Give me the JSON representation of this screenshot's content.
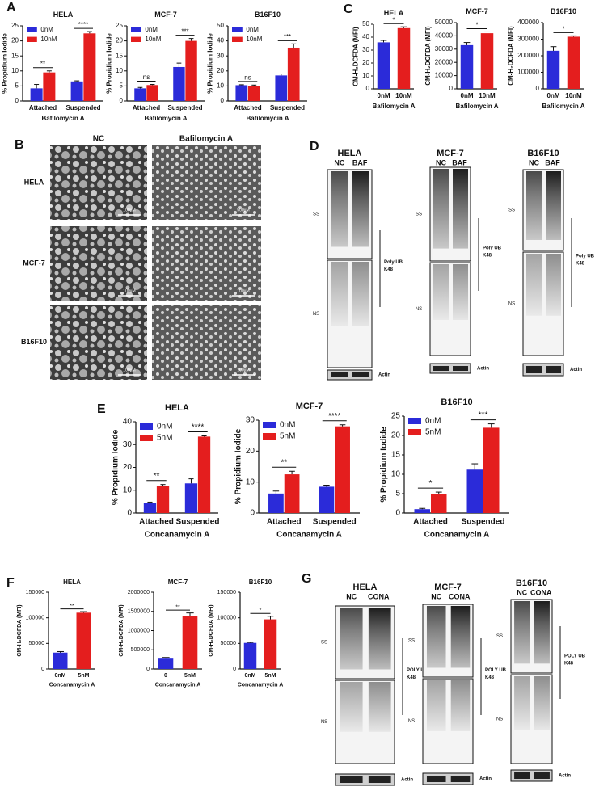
{
  "panel_labels": [
    "A",
    "B",
    "C",
    "D",
    "E",
    "F",
    "G"
  ],
  "chart_data": [
    {
      "type": "bar",
      "title": "HELA",
      "categories": [
        "Attached",
        "Suspended"
      ],
      "series": [
        {
          "name": "0nM",
          "color": "#2b2bd9",
          "values": [
            4.2,
            6.5
          ],
          "errors": [
            1.3,
            0.2
          ]
        },
        {
          "name": "10nM",
          "color": "#e41e1e",
          "values": [
            9.5,
            22.5
          ],
          "errors": [
            0.5,
            0.6
          ]
        }
      ],
      "significance": [
        "**",
        "****"
      ],
      "ylabel": "% Propidium Iodide",
      "xlabel": "Bafilomycin A",
      "ylim": [
        0,
        25
      ],
      "yticks": [
        0,
        5,
        10,
        15,
        20,
        25
      ],
      "legend": "upper left"
    },
    {
      "type": "bar",
      "title": "MCF-7",
      "categories": [
        "Attached",
        "Suspended"
      ],
      "series": [
        {
          "name": "0nM",
          "color": "#2b2bd9",
          "values": [
            4.2,
            11.3
          ],
          "errors": [
            0.3,
            1.3
          ]
        },
        {
          "name": "10nM",
          "color": "#e41e1e",
          "values": [
            5.3,
            20
          ],
          "errors": [
            0.2,
            0.8
          ]
        }
      ],
      "significance": [
        "ns",
        "***"
      ],
      "ylabel": "% Propidium Iodide",
      "xlabel": "Bafilomycin A",
      "ylim": [
        0,
        25
      ],
      "yticks": [
        0,
        5,
        10,
        15,
        20,
        25
      ],
      "legend": "upper left"
    },
    {
      "type": "bar",
      "title": "B16F10",
      "categories": [
        "Attached",
        "Suspended"
      ],
      "series": [
        {
          "name": "0nM",
          "color": "#2b2bd9",
          "values": [
            10.5,
            17
          ],
          "errors": [
            0.3,
            1
          ]
        },
        {
          "name": "10nM",
          "color": "#e41e1e",
          "values": [
            10.2,
            35.5
          ],
          "errors": [
            0.4,
            2.5
          ]
        }
      ],
      "significance": [
        "ns",
        "***"
      ],
      "ylabel": "% Propidium Iodide",
      "xlabel": "Bafilomycin A",
      "ylim": [
        0,
        50
      ],
      "yticks": [
        0,
        10,
        20,
        30,
        40,
        50
      ],
      "legend": "upper left"
    },
    {
      "type": "bar",
      "title": "HELA",
      "categories": [
        "0nM",
        "10nM"
      ],
      "values": [
        36,
        47
      ],
      "errors": [
        1.5,
        1
      ],
      "colors": [
        "#2b2bd9",
        "#e41e1e"
      ],
      "significance": "*",
      "ylabel": "CM-H₂DCFDA (MFI)",
      "xlabel": "Bafilomycin A",
      "ylim": [
        0,
        50
      ],
      "yticks": [
        0,
        10,
        20,
        30,
        40,
        50
      ]
    },
    {
      "type": "bar",
      "title": "MCF-7",
      "categories": [
        "0nM",
        "10nM"
      ],
      "values": [
        33000,
        42000
      ],
      "errors": [
        2000,
        1000
      ],
      "colors": [
        "#2b2bd9",
        "#e41e1e"
      ],
      "significance": "*",
      "ylabel": "CM-H₂DCFDA (MFI)",
      "xlabel": "Bafilomycin A",
      "ylim": [
        0,
        50000
      ],
      "yticks": [
        0,
        10000,
        20000,
        30000,
        40000,
        50000
      ]
    },
    {
      "type": "bar",
      "title": "B16F10",
      "categories": [
        "0nM",
        "10nM"
      ],
      "values": [
        230000,
        315000
      ],
      "errors": [
        25000,
        5000
      ],
      "colors": [
        "#2b2bd9",
        "#e41e1e"
      ],
      "significance": "*",
      "ylabel": "CM-H₂DCFDA (MFI)",
      "xlabel": "Bafilomycin A",
      "ylim": [
        0,
        400000
      ],
      "yticks": [
        0,
        100000,
        200000,
        300000,
        400000
      ]
    },
    {
      "type": "bar",
      "title": "HELA",
      "categories": [
        "Attached",
        "Suspended"
      ],
      "series": [
        {
          "name": "0nM",
          "color": "#2b2bd9",
          "values": [
            4.5,
            13
          ],
          "errors": [
            0.3,
            2
          ]
        },
        {
          "name": "5nM",
          "color": "#e41e1e",
          "values": [
            12,
            33.5
          ],
          "errors": [
            0.5,
            0.3
          ]
        }
      ],
      "significance": [
        "**",
        "****"
      ],
      "ylabel": "% Propidium Iodide",
      "xlabel": "Concanamycin A",
      "ylim": [
        0,
        40
      ],
      "yticks": [
        0,
        10,
        20,
        30,
        40
      ],
      "legend": "upper left"
    },
    {
      "type": "bar",
      "title": "MCF-7",
      "categories": [
        "Attached",
        "Suspended"
      ],
      "series": [
        {
          "name": "0nM",
          "color": "#2b2bd9",
          "values": [
            6.3,
            8.5
          ],
          "errors": [
            0.8,
            0.5
          ]
        },
        {
          "name": "5nM",
          "color": "#e41e1e",
          "values": [
            12.5,
            28
          ],
          "errors": [
            1,
            0.5
          ]
        }
      ],
      "significance": [
        "**",
        "****"
      ],
      "ylabel": "% Propidium Iodide",
      "xlabel": "Concanamycin A",
      "ylim": [
        0,
        30
      ],
      "yticks": [
        0,
        10,
        20,
        30
      ],
      "legend": "upper left"
    },
    {
      "type": "bar",
      "title": "B16F10",
      "categories": [
        "Attached",
        "Suspended"
      ],
      "series": [
        {
          "name": "0nM",
          "color": "#2b2bd9",
          "values": [
            1,
            11.2
          ],
          "errors": [
            0.2,
            1.5
          ]
        },
        {
          "name": "5nM",
          "color": "#e41e1e",
          "values": [
            4.8,
            22
          ],
          "errors": [
            0.6,
            1
          ]
        }
      ],
      "significance": [
        "*",
        "***"
      ],
      "ylabel": "% Propidium Iodide",
      "xlabel": "Concanamycin A",
      "ylim": [
        0,
        25
      ],
      "yticks": [
        0,
        5,
        10,
        15,
        20,
        25
      ],
      "legend": "upper left"
    },
    {
      "type": "bar",
      "title": "HELA",
      "categories": [
        "0nM",
        "5nM"
      ],
      "values": [
        32000,
        110000
      ],
      "errors": [
        2000,
        2000
      ],
      "colors": [
        "#2b2bd9",
        "#e41e1e"
      ],
      "significance": "**",
      "ylabel": "CM-H₂DCFDA (MFI)",
      "xlabel": "Concanamycin A",
      "ylim": [
        0,
        150000
      ],
      "yticks": [
        0,
        50000,
        100000,
        150000
      ]
    },
    {
      "type": "bar",
      "title": "MCF-7",
      "categories": [
        "0",
        "5nM"
      ],
      "values": [
        270000,
        1370000
      ],
      "errors": [
        30000,
        90000
      ],
      "colors": [
        "#2b2bd9",
        "#e41e1e"
      ],
      "significance": "**",
      "ylabel": "CM-H₂DCFDA (MFI)",
      "xlabel": "Concanamycin A",
      "ylim": [
        0,
        2000000
      ],
      "yticks": [
        0,
        500000,
        1000000,
        1500000,
        2000000
      ]
    },
    {
      "type": "bar",
      "title": "B16F10",
      "categories": [
        "0nM",
        "5nM"
      ],
      "values": [
        51000,
        97000
      ],
      "errors": [
        1000,
        6000
      ],
      "colors": [
        "#2b2bd9",
        "#e41e1e"
      ],
      "significance": "*",
      "ylabel": "CM-H₂DCFDA (MFI)",
      "xlabel": "Concanamycin A",
      "ylim": [
        0,
        150000
      ],
      "yticks": [
        0,
        50000,
        100000,
        150000
      ]
    }
  ],
  "micrographs": {
    "columns": [
      "NC",
      "Bafilomycin A"
    ],
    "rows": [
      "HELA",
      "MCF-7",
      "B16F10"
    ],
    "scale_bars": [
      [
        "100µM",
        "500µM"
      ],
      [
        "100µM",
        "100µM"
      ],
      [
        "100µM",
        "100µM"
      ]
    ]
  },
  "blots_d": [
    {
      "name": "HELA",
      "lanes": [
        "NC",
        "BAF"
      ],
      "fractions": [
        "SS",
        "NS"
      ],
      "bracket": [
        "Poly UB",
        "K48"
      ],
      "loading": "Actin"
    },
    {
      "name": "MCF-7",
      "lanes": [
        "NC",
        "BAF"
      ],
      "fractions": [
        "SS",
        "NS"
      ],
      "bracket": [
        "Poly UB",
        "K48"
      ],
      "loading": "Actin"
    },
    {
      "name": "B16F10",
      "lanes": [
        "NC",
        "BAF"
      ],
      "fractions": [
        "SS",
        "NS"
      ],
      "bracket": [
        "Poly UB",
        "K48"
      ],
      "loading": "Actin"
    }
  ],
  "blots_g": [
    {
      "name": "HELA",
      "lanes": [
        "NC",
        "CONA"
      ],
      "fractions": [
        "SS",
        "NS"
      ],
      "bracket": [
        "POLY UB",
        "K48"
      ],
      "loading": "Actin"
    },
    {
      "name": "MCF-7",
      "lanes": [
        "NC",
        "CONA"
      ],
      "fractions": [
        "SS",
        "NS"
      ],
      "bracket": [
        "POLY UB",
        "K48"
      ],
      "loading": "Actin"
    },
    {
      "name": "B16F10",
      "lanes": [
        "NC",
        "CONA"
      ],
      "fractions": [
        "SS",
        "NS"
      ],
      "bracket": [
        "POLY UB",
        "K48"
      ],
      "loading": "Actin"
    }
  ]
}
